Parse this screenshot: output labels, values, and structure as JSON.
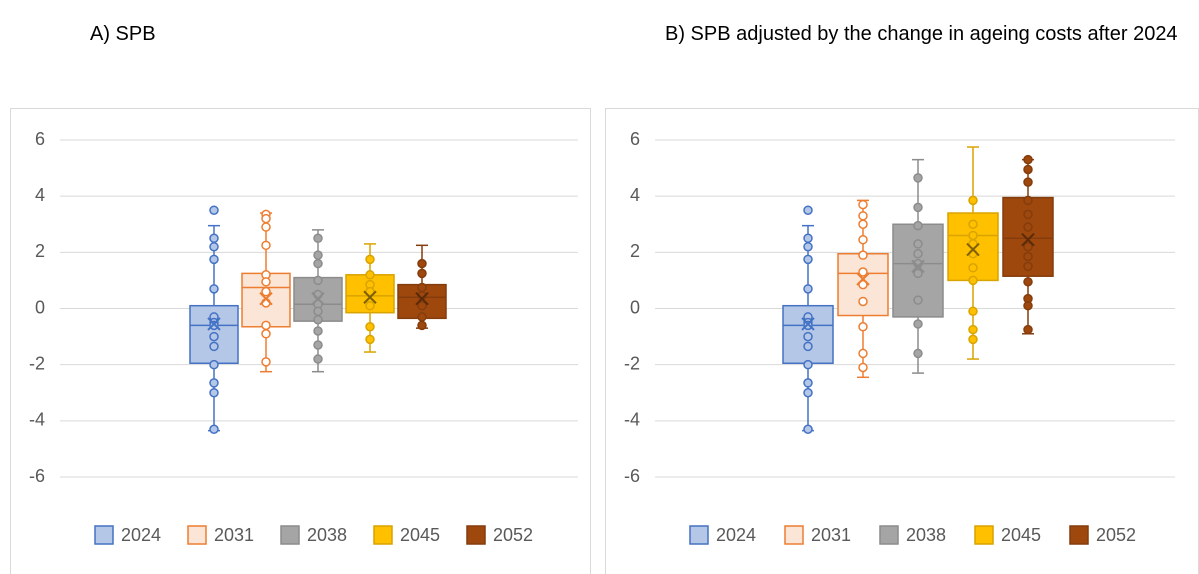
{
  "chart_data": [
    {
      "type": "box",
      "title": "A) SPB",
      "ylim": [
        -6,
        6
      ],
      "yticks": [
        -6,
        -4,
        -2,
        0,
        2,
        4,
        6
      ],
      "grid": true,
      "legend": "bottom",
      "series": [
        {
          "name": "2024",
          "color": "#4472c4",
          "fill": "#b4c7e7",
          "min": -4.35,
          "q1": -1.95,
          "median": -0.6,
          "q3": 0.1,
          "max": 2.95,
          "mean": -0.55,
          "points": [
            3.5,
            2.5,
            2.2,
            1.75,
            0.7,
            -0.3,
            -0.5,
            -0.6,
            -1.0,
            -1.35,
            -2.0,
            -2.65,
            -3.0,
            -4.3
          ]
        },
        {
          "name": "2031",
          "color": "#ed7d31",
          "fill": "#fbe5d6",
          "min": -2.25,
          "q1": -0.65,
          "median": 0.75,
          "q3": 1.25,
          "max": 3.4,
          "mean": 0.35,
          "points": [
            3.35,
            3.2,
            2.9,
            2.25,
            1.2,
            0.95,
            0.6,
            0.2,
            -0.6,
            -0.9,
            -1.9
          ]
        },
        {
          "name": "2038",
          "color": "#8c8c8c",
          "fill": "#a5a5a5",
          "min": -2.25,
          "q1": -0.45,
          "median": 0.15,
          "q3": 1.1,
          "max": 2.8,
          "mean": 0.35,
          "points": [
            2.5,
            1.9,
            1.6,
            1.0,
            0.5,
            0.15,
            -0.1,
            -0.4,
            -0.8,
            -1.3,
            -1.8
          ]
        },
        {
          "name": "2045",
          "color": "#d9a300",
          "fill": "#ffc000",
          "min": -1.55,
          "q1": -0.15,
          "median": 0.45,
          "q3": 1.2,
          "max": 2.3,
          "mean": 0.4,
          "points": [
            1.75,
            1.2,
            0.85,
            0.6,
            0.1,
            -0.65,
            -1.1
          ]
        },
        {
          "name": "2052",
          "color": "#843c0c",
          "fill": "#9e480e",
          "min": -0.7,
          "q1": -0.35,
          "median": 0.4,
          "q3": 0.85,
          "max": 2.25,
          "mean": 0.35,
          "points": [
            1.6,
            1.25,
            0.75,
            0.45,
            0.1,
            -0.3,
            -0.6
          ]
        }
      ]
    },
    {
      "type": "box",
      "title": "B) SPB adjusted by the change in ageing costs after 2024",
      "ylim": [
        -6,
        6
      ],
      "yticks": [
        -6,
        -4,
        -2,
        0,
        2,
        4,
        6
      ],
      "grid": true,
      "legend": "bottom",
      "series": [
        {
          "name": "2024",
          "color": "#4472c4",
          "fill": "#b4c7e7",
          "min": -4.35,
          "q1": -1.95,
          "median": -0.6,
          "q3": 0.1,
          "max": 2.95,
          "mean": -0.55,
          "points": [
            3.5,
            2.5,
            2.2,
            1.75,
            0.7,
            -0.3,
            -0.5,
            -0.6,
            -1.0,
            -1.35,
            -2.0,
            -2.65,
            -3.0,
            -4.3
          ]
        },
        {
          "name": "2031",
          "color": "#ed7d31",
          "fill": "#fbe5d6",
          "min": -2.45,
          "q1": -0.25,
          "median": 1.25,
          "q3": 1.95,
          "max": 3.85,
          "mean": 1.05,
          "points": [
            3.7,
            3.3,
            3.0,
            2.45,
            1.9,
            1.3,
            0.85,
            0.25,
            -0.65,
            -1.6,
            -2.1
          ]
        },
        {
          "name": "2038",
          "color": "#8c8c8c",
          "fill": "#a5a5a5",
          "min": -2.3,
          "q1": -0.3,
          "median": 1.6,
          "q3": 3.0,
          "max": 5.3,
          "mean": 1.5,
          "points": [
            4.65,
            3.6,
            2.95,
            2.3,
            1.95,
            1.6,
            1.25,
            0.3,
            -0.55,
            -1.6
          ]
        },
        {
          "name": "2045",
          "color": "#d9a300",
          "fill": "#ffc000",
          "min": -1.8,
          "q1": 1.0,
          "median": 2.6,
          "q3": 3.4,
          "max": 5.75,
          "mean": 2.1,
          "points": [
            3.85,
            3.0,
            2.6,
            2.3,
            1.95,
            1.45,
            1.0,
            -0.1,
            -0.75,
            -1.1
          ]
        },
        {
          "name": "2052",
          "color": "#843c0c",
          "fill": "#9e480e",
          "min": -0.9,
          "q1": 1.15,
          "median": 2.5,
          "q3": 3.95,
          "max": 5.3,
          "mean": 2.45,
          "points": [
            5.3,
            4.95,
            4.5,
            3.85,
            3.35,
            2.9,
            2.2,
            1.85,
            1.5,
            0.95,
            0.35,
            0.1,
            -0.75
          ]
        }
      ]
    }
  ]
}
